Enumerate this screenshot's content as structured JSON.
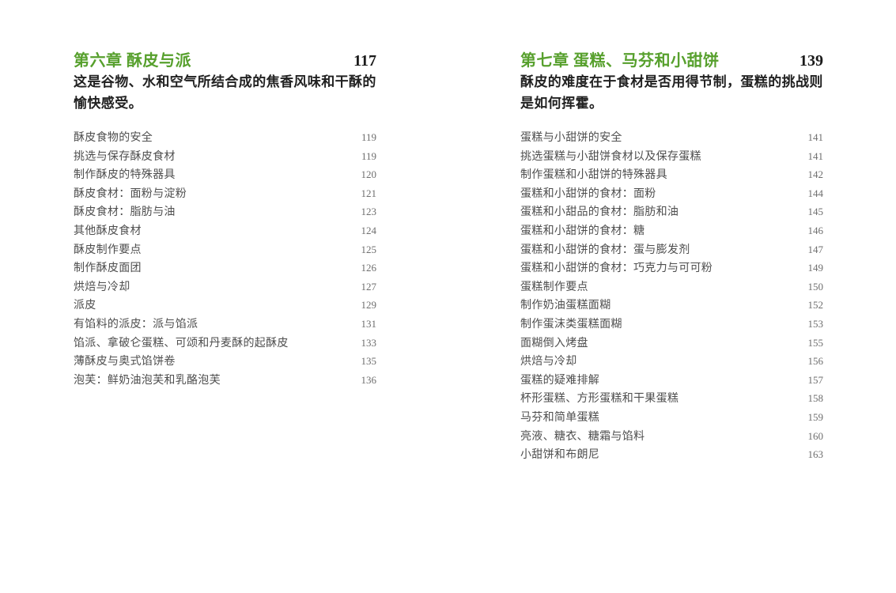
{
  "colors": {
    "page_bg": "#ffffff",
    "chapter_title_color": "#57a02d",
    "chapter_page_color": "#1a1a1a",
    "subtitle_color": "#212121",
    "item_text_color": "#4e4e4e",
    "item_page_color": "#6e6e6e"
  },
  "chapters": [
    {
      "title": "第六章 酥皮与派",
      "page": "117",
      "subtitle": "这是谷物、水和空气所结合成的焦香风味和干酥的愉快感受。",
      "items": [
        {
          "label": "酥皮食物的安全",
          "page": "119"
        },
        {
          "label": "挑选与保存酥皮食材",
          "page": "119"
        },
        {
          "label": "制作酥皮的特殊器具",
          "page": "120"
        },
        {
          "label": "酥皮食材：面粉与淀粉",
          "page": "121"
        },
        {
          "label": "酥皮食材：脂肪与油",
          "page": "123"
        },
        {
          "label": "其他酥皮食材",
          "page": "124"
        },
        {
          "label": "酥皮制作要点",
          "page": "125"
        },
        {
          "label": "制作酥皮面团",
          "page": "126"
        },
        {
          "label": "烘焙与冷却",
          "page": "127"
        },
        {
          "label": "派皮",
          "page": "129"
        },
        {
          "label": "有馅料的派皮：派与馅派",
          "page": "131"
        },
        {
          "label": "馅派、拿破仑蛋糕、可颂和丹麦酥的起酥皮",
          "page": "133"
        },
        {
          "label": "薄酥皮与奥式馅饼卷",
          "page": "135"
        },
        {
          "label": "泡芙：鲜奶油泡芙和乳酪泡芙",
          "page": "136"
        }
      ]
    },
    {
      "title": "第七章 蛋糕、马芬和小甜饼",
      "page": "139",
      "subtitle": "酥皮的难度在于食材是否用得节制，蛋糕的挑战则是如何挥霍。",
      "items": [
        {
          "label": "蛋糕与小甜饼的安全",
          "page": "141"
        },
        {
          "label": "挑选蛋糕与小甜饼食材以及保存蛋糕",
          "page": "141"
        },
        {
          "label": "制作蛋糕和小甜饼的特殊器具",
          "page": "142"
        },
        {
          "label": "蛋糕和小甜饼的食材：面粉",
          "page": "144"
        },
        {
          "label": "蛋糕和小甜品的食材：脂肪和油",
          "page": "145"
        },
        {
          "label": "蛋糕和小甜饼的食材：糖",
          "page": "146"
        },
        {
          "label": "蛋糕和小甜饼的食材：蛋与膨发剂",
          "page": "147"
        },
        {
          "label": "蛋糕和小甜饼的食材：巧克力与可可粉",
          "page": "149"
        },
        {
          "label": "蛋糕制作要点",
          "page": "150"
        },
        {
          "label": "制作奶油蛋糕面糊",
          "page": "152"
        },
        {
          "label": "制作蛋沫类蛋糕面糊",
          "page": "153"
        },
        {
          "label": "面糊倒入烤盘",
          "page": "155"
        },
        {
          "label": "烘焙与冷却",
          "page": "156"
        },
        {
          "label": "蛋糕的疑难排解",
          "page": "157"
        },
        {
          "label": "杯形蛋糕、方形蛋糕和干果蛋糕",
          "page": "158"
        },
        {
          "label": "马芬和简单蛋糕",
          "page": "159"
        },
        {
          "label": "亮液、糖衣、糖霜与馅料",
          "page": "160"
        },
        {
          "label": "小甜饼和布朗尼",
          "page": "163"
        }
      ]
    }
  ]
}
